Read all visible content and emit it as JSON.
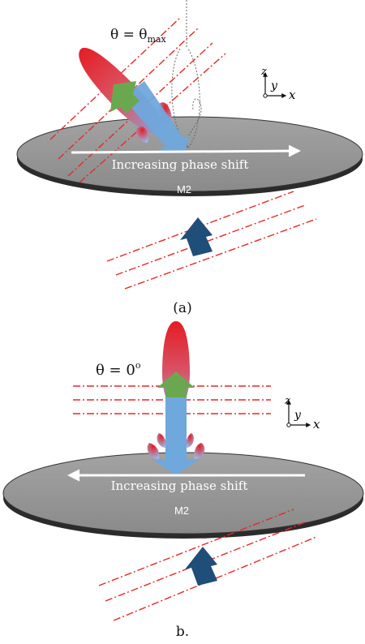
{
  "panel_a": {
    "angle_symbol": "θ",
    "angle_equals": " = θ",
    "angle_sub": "max",
    "phase_label": "Increasing phase shift",
    "mirror_label": "M2",
    "axis_z": "z",
    "axis_y": "y",
    "axis_x": "x",
    "caption": "(a)"
  },
  "panel_b": {
    "angle_label": "θ = 0",
    "angle_sup": "o",
    "phase_label": "Increasing phase shift",
    "mirror_label": "M2",
    "axis_z": "z",
    "axis_y": "y",
    "axis_x": "x",
    "caption": "b."
  },
  "colors": {
    "mirror_top": "#9a9a9a",
    "mirror_edge": "#2b2b2b",
    "wavefront": "#e8272a",
    "incident_arrow": "#1f4e79",
    "reflected_arrow": "#6aa84f",
    "beam_blue": "#6fa8dc",
    "lobe_red": "#e51c23"
  }
}
